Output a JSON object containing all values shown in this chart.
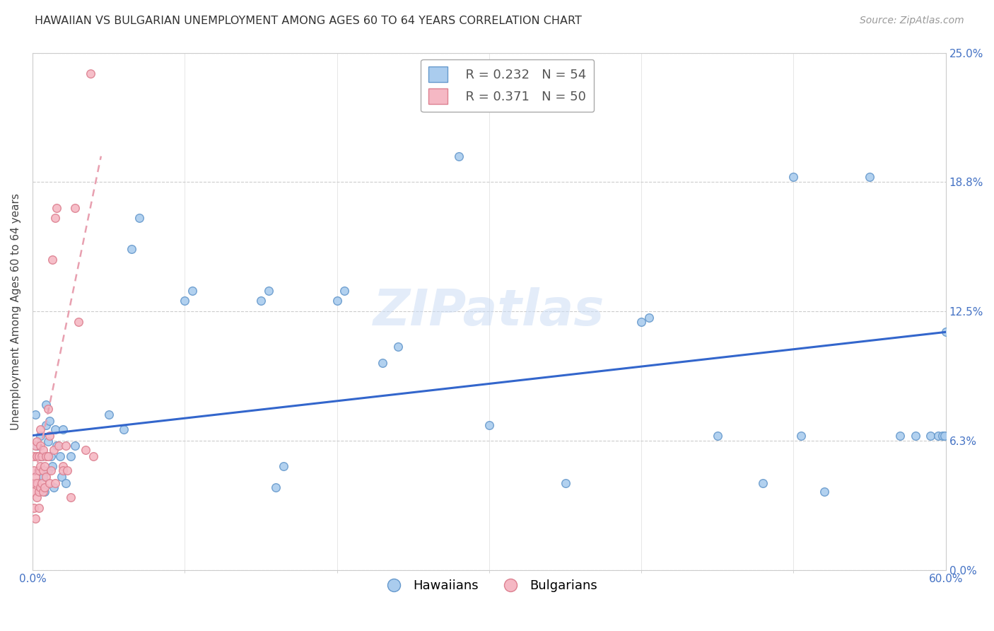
{
  "title": "HAWAIIAN VS BULGARIAN UNEMPLOYMENT AMONG AGES 60 TO 64 YEARS CORRELATION CHART",
  "source": "Source: ZipAtlas.com",
  "ylabel": "Unemployment Among Ages 60 to 64 years",
  "xlim": [
    0.0,
    0.6
  ],
  "ylim": [
    0.0,
    0.25
  ],
  "xtick_positions": [
    0.0,
    0.6
  ],
  "xtick_labels": [
    "0.0%",
    "60.0%"
  ],
  "xtick_minor_positions": [
    0.1,
    0.2,
    0.3,
    0.4,
    0.5
  ],
  "ytick_positions": [
    0.0,
    0.0625,
    0.125,
    0.1875,
    0.25
  ],
  "ytick_labels": [
    "0.0%",
    "6.3%",
    "12.5%",
    "18.8%",
    "25.0%"
  ],
  "hawaiians_x": [
    0.002,
    0.003,
    0.005,
    0.006,
    0.007,
    0.008,
    0.009,
    0.009,
    0.01,
    0.01,
    0.011,
    0.012,
    0.013,
    0.014,
    0.015,
    0.016,
    0.018,
    0.019,
    0.02,
    0.022,
    0.025,
    0.028,
    0.05,
    0.06,
    0.065,
    0.07,
    0.1,
    0.105,
    0.15,
    0.155,
    0.16,
    0.165,
    0.2,
    0.205,
    0.23,
    0.24,
    0.28,
    0.3,
    0.35,
    0.4,
    0.405,
    0.45,
    0.48,
    0.5,
    0.505,
    0.52,
    0.55,
    0.57,
    0.58,
    0.59,
    0.595,
    0.598,
    0.599,
    0.6
  ],
  "hawaiians_y": [
    0.075,
    0.06,
    0.065,
    0.055,
    0.045,
    0.038,
    0.07,
    0.08,
    0.048,
    0.062,
    0.072,
    0.055,
    0.05,
    0.04,
    0.068,
    0.06,
    0.055,
    0.045,
    0.068,
    0.042,
    0.055,
    0.06,
    0.075,
    0.068,
    0.155,
    0.17,
    0.13,
    0.135,
    0.13,
    0.135,
    0.04,
    0.05,
    0.13,
    0.135,
    0.1,
    0.108,
    0.2,
    0.07,
    0.042,
    0.12,
    0.122,
    0.065,
    0.042,
    0.19,
    0.065,
    0.038,
    0.19,
    0.065,
    0.065,
    0.065,
    0.065,
    0.065,
    0.065,
    0.115
  ],
  "bulgarians_x": [
    0.0,
    0.0,
    0.001,
    0.001,
    0.001,
    0.002,
    0.002,
    0.002,
    0.003,
    0.003,
    0.003,
    0.003,
    0.004,
    0.004,
    0.004,
    0.004,
    0.005,
    0.005,
    0.005,
    0.005,
    0.006,
    0.006,
    0.007,
    0.007,
    0.007,
    0.008,
    0.008,
    0.009,
    0.009,
    0.01,
    0.01,
    0.011,
    0.011,
    0.012,
    0.013,
    0.014,
    0.015,
    0.015,
    0.016,
    0.017,
    0.02,
    0.02,
    0.022,
    0.023,
    0.025,
    0.028,
    0.03,
    0.035,
    0.038,
    0.04
  ],
  "bulgarians_y": [
    0.042,
    0.038,
    0.055,
    0.048,
    0.03,
    0.06,
    0.045,
    0.025,
    0.055,
    0.062,
    0.035,
    0.042,
    0.048,
    0.038,
    0.055,
    0.03,
    0.05,
    0.04,
    0.06,
    0.068,
    0.042,
    0.055,
    0.048,
    0.058,
    0.038,
    0.05,
    0.04,
    0.055,
    0.045,
    0.078,
    0.055,
    0.065,
    0.042,
    0.048,
    0.15,
    0.058,
    0.042,
    0.17,
    0.175,
    0.06,
    0.05,
    0.048,
    0.06,
    0.048,
    0.035,
    0.175,
    0.12,
    0.058,
    0.24,
    0.055
  ],
  "hawaiian_color": "#aaccee",
  "hawaiian_edge": "#6699cc",
  "bulgarian_color": "#f5b8c4",
  "bulgarian_edge": "#dd8090",
  "trend_h_color": "#3366cc",
  "trend_b_color": "#e8a0b0",
  "trend_h_x0": 0.0,
  "trend_h_y0": 0.065,
  "trend_h_x1": 0.6,
  "trend_h_y1": 0.115,
  "trend_b_x0": 0.0,
  "trend_b_y0": 0.04,
  "trend_b_x1": 0.045,
  "trend_b_y1": 0.2,
  "R_hawaiian": "0.232",
  "N_hawaiian": "54",
  "R_bulgarian": "0.371",
  "N_bulgarian": "50",
  "legend_hawaiian": "Hawaiians",
  "legend_bulgarian": "Bulgarians",
  "title_fontsize": 11.5,
  "axis_label_fontsize": 11,
  "tick_fontsize": 11,
  "legend_fontsize": 13,
  "source_fontsize": 10,
  "marker_size": 70,
  "background_color": "#ffffff",
  "grid_color": "#cccccc",
  "tick_color": "#4472c4",
  "watermark": "ZIPatlas"
}
